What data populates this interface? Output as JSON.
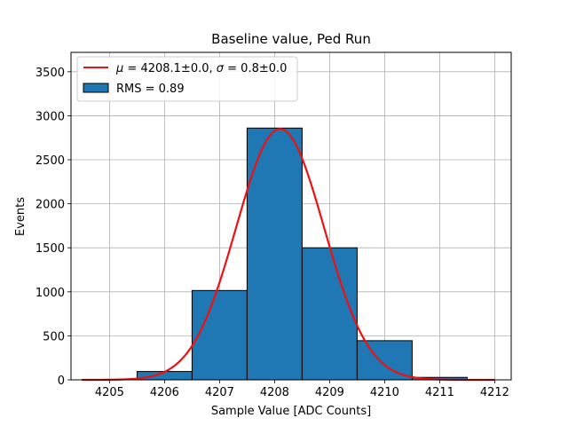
{
  "chart_data": {
    "type": "bar",
    "title": "Baseline value, Ped Run",
    "xlabel": "Sample Value [ADC Counts]",
    "ylabel": "Events",
    "xlim": [
      4204.3,
      4212.3
    ],
    "ylim": [
      0,
      3720
    ],
    "xticks": [
      4205,
      4206,
      4207,
      4208,
      4209,
      4210,
      4211,
      4212
    ],
    "yticks": [
      0,
      500,
      1000,
      1500,
      2000,
      2500,
      3000,
      3500
    ],
    "grid": true,
    "legend_position": "upper-left",
    "histogram": {
      "name": "RMS = 0.89",
      "color": "#1f77b4",
      "bins": [
        {
          "x0": 4204.5,
          "x1": 4205.5,
          "value": 3
        },
        {
          "x0": 4205.5,
          "x1": 4206.5,
          "value": 95
        },
        {
          "x0": 4206.5,
          "x1": 4207.5,
          "value": 1015
        },
        {
          "x0": 4207.5,
          "x1": 4208.5,
          "value": 2860
        },
        {
          "x0": 4208.5,
          "x1": 4209.5,
          "value": 1500
        },
        {
          "x0": 4209.5,
          "x1": 4210.5,
          "value": 445
        },
        {
          "x0": 4210.5,
          "x1": 4211.5,
          "value": 28
        },
        {
          "x0": 4211.5,
          "x1": 4212.5,
          "value": 0
        }
      ]
    },
    "fit": {
      "name_parts": {
        "mu_symbol": "μ",
        "mu_rest": " = 4208.1±0.0, ",
        "sigma_symbol": "σ",
        "sigma_rest": " = 0.8±0.0"
      },
      "color": "#ee1111",
      "type": "gaussian",
      "amplitude": 2850,
      "mean": 4208.1,
      "sigma": 0.8,
      "x_range": [
        4204.5,
        4212.0
      ]
    }
  }
}
